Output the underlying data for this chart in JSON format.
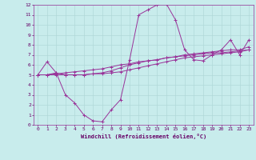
{
  "xlabel": "Windchill (Refroidissement éolien,°C)",
  "xlim": [
    -0.5,
    23.5
  ],
  "ylim": [
    0,
    12
  ],
  "xticks": [
    0,
    1,
    2,
    3,
    4,
    5,
    6,
    7,
    8,
    9,
    10,
    11,
    12,
    13,
    14,
    15,
    16,
    17,
    18,
    19,
    20,
    21,
    22,
    23
  ],
  "yticks": [
    0,
    1,
    2,
    3,
    4,
    5,
    6,
    7,
    8,
    9,
    10,
    11,
    12
  ],
  "background_color": "#c8ecec",
  "grid_color": "#b0d8d8",
  "line_color": "#993399",
  "line1_x": [
    0,
    1,
    2,
    3,
    4,
    5,
    6,
    7,
    8,
    9,
    10,
    11,
    12,
    13,
    14,
    15,
    16,
    17,
    18,
    19,
    20,
    21,
    22,
    23
  ],
  "line1_y": [
    5.0,
    6.3,
    5.2,
    5.0,
    5.0,
    5.0,
    5.1,
    5.2,
    5.4,
    5.7,
    6.0,
    6.2,
    6.4,
    6.5,
    6.7,
    6.8,
    6.9,
    7.0,
    7.1,
    7.2,
    7.2,
    7.3,
    7.4,
    7.5
  ],
  "line2_x": [
    0,
    1,
    2,
    3,
    4,
    5,
    6,
    7,
    8,
    9,
    10,
    11,
    12,
    13,
    14,
    15,
    16,
    17,
    18,
    19,
    20,
    21,
    22,
    23
  ],
  "line2_y": [
    5.0,
    5.0,
    5.2,
    3.0,
    2.2,
    1.0,
    0.4,
    0.3,
    1.5,
    2.5,
    6.5,
    11.0,
    11.5,
    12.0,
    12.1,
    10.5,
    7.5,
    6.5,
    6.4,
    7.0,
    7.5,
    8.5,
    7.0,
    8.5
  ],
  "line3_x": [
    0,
    1,
    2,
    3,
    4,
    5,
    6,
    7,
    8,
    9,
    10,
    11,
    12,
    13,
    14,
    15,
    16,
    17,
    18,
    19,
    20,
    21,
    22,
    23
  ],
  "line3_y": [
    5.0,
    5.0,
    5.1,
    5.2,
    5.3,
    5.4,
    5.5,
    5.6,
    5.8,
    6.0,
    6.1,
    6.3,
    6.4,
    6.5,
    6.7,
    6.8,
    7.0,
    7.1,
    7.2,
    7.3,
    7.4,
    7.5,
    7.5,
    7.8
  ],
  "line4_x": [
    0,
    1,
    2,
    3,
    4,
    5,
    6,
    7,
    8,
    9,
    10,
    11,
    12,
    13,
    14,
    15,
    16,
    17,
    18,
    19,
    20,
    21,
    22,
    23
  ],
  "line4_y": [
    5.0,
    5.0,
    5.0,
    5.0,
    5.0,
    5.0,
    5.1,
    5.1,
    5.2,
    5.3,
    5.5,
    5.7,
    5.9,
    6.1,
    6.3,
    6.5,
    6.7,
    6.8,
    6.9,
    7.0,
    7.1,
    7.2,
    7.3,
    7.5
  ]
}
